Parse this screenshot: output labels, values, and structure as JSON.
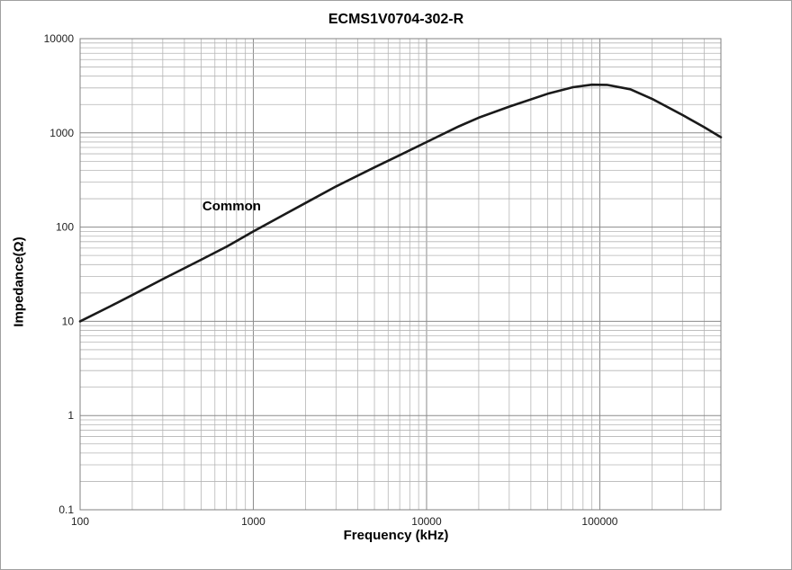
{
  "chart_data": {
    "type": "line",
    "title": "ECMS1V0704-302-R",
    "xlabel": "Frequency (kHz)",
    "ylabel": "Impedance(Ω)",
    "x_scale": "log",
    "y_scale": "log",
    "xlim": [
      100,
      500000
    ],
    "ylim": [
      0.1,
      10000
    ],
    "x_ticks": [
      100,
      1000,
      10000,
      100000
    ],
    "y_ticks": [
      0.1,
      1,
      10,
      100,
      1000,
      10000
    ],
    "grid": "major+minor",
    "legend": "none",
    "series": [
      {
        "name": "Common",
        "x": [
          100,
          150,
          200,
          300,
          500,
          700,
          1000,
          1500,
          2000,
          3000,
          5000,
          7000,
          10000,
          15000,
          20000,
          30000,
          50000,
          70000,
          90000,
          110000,
          150000,
          200000,
          300000,
          400000,
          500000
        ],
        "y": [
          10,
          14.5,
          19,
          28,
          45,
          62,
          90,
          135,
          180,
          270,
          430,
          580,
          800,
          1150,
          1450,
          1900,
          2600,
          3050,
          3250,
          3230,
          2900,
          2300,
          1550,
          1150,
          900
        ]
      }
    ],
    "annotations": [
      {
        "text": "Common",
        "x": 750,
        "y": 150
      }
    ]
  },
  "colors": {
    "line": "#1a1a1a",
    "grid_major": "#8c8c8c",
    "grid_minor": "#b5b5b5",
    "axis_frame": "#808080",
    "tick_text": "#222222",
    "background": "#ffffff"
  }
}
